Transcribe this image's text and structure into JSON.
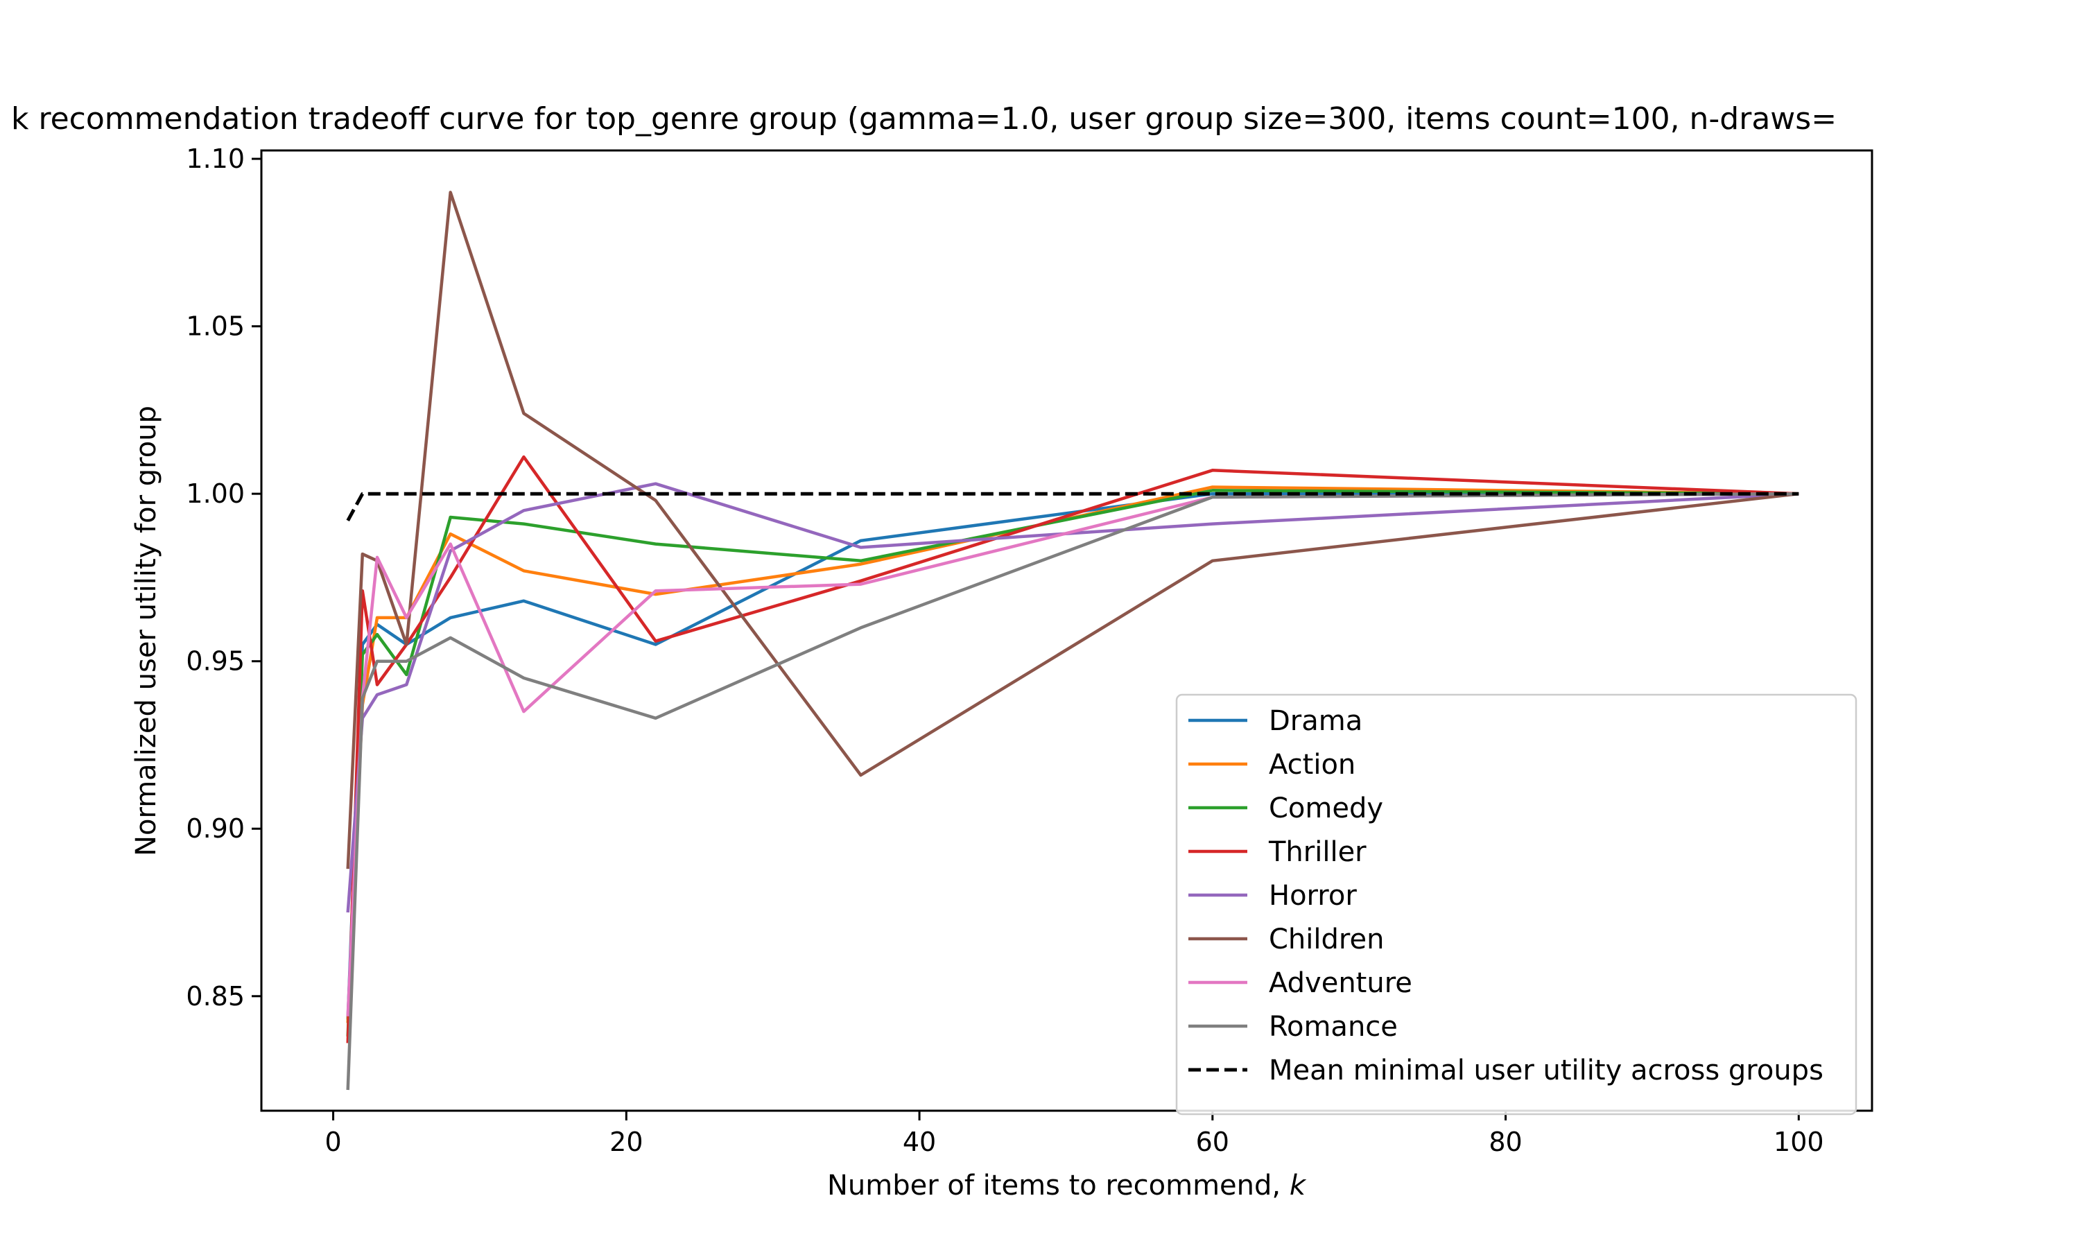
{
  "chart_data": {
    "type": "line",
    "title": "k recommendation tradeoff curve for top_genre group (gamma=1.0, user group size=300, items count=100, n-draws=",
    "xlabel": "Number of items to recommend, ",
    "xlabel_var": "k",
    "ylabel": "Normalized user utility for group",
    "xlim": [
      -4.9,
      105
    ],
    "ylim": [
      0.8158,
      1.1025
    ],
    "x_ticks": [
      0,
      20,
      40,
      60,
      80,
      100
    ],
    "x_tick_labels": [
      "0",
      "20",
      "40",
      "60",
      "80",
      "100"
    ],
    "y_ticks": [
      0.85,
      0.9,
      0.95,
      1.0,
      1.05,
      1.1
    ],
    "y_tick_labels": [
      "0.85",
      "0.90",
      "0.95",
      "1.00",
      "1.05",
      "1.10"
    ],
    "grid": false,
    "legend_position": "lower-right",
    "x": [
      1,
      2,
      3,
      5,
      8,
      13,
      22,
      36,
      60,
      100
    ],
    "series": [
      {
        "name": "Drama",
        "color": "#1f77b4",
        "dash": false,
        "values": [
          0.843,
          0.955,
          0.961,
          0.955,
          0.963,
          0.968,
          0.955,
          0.986,
          1.0,
          1.0
        ]
      },
      {
        "name": "Action",
        "color": "#ff7f0e",
        "dash": false,
        "values": [
          0.842,
          0.937,
          0.963,
          0.963,
          0.988,
          0.977,
          0.97,
          0.979,
          1.002,
          1.0
        ]
      },
      {
        "name": "Comedy",
        "color": "#2ca02c",
        "dash": false,
        "values": [
          0.838,
          0.952,
          0.958,
          0.946,
          0.993,
          0.991,
          0.985,
          0.98,
          1.001,
          1.0
        ]
      },
      {
        "name": "Thriller",
        "color": "#d62728",
        "dash": false,
        "values": [
          0.836,
          0.971,
          0.943,
          0.955,
          0.975,
          1.011,
          0.956,
          0.974,
          1.007,
          1.0
        ]
      },
      {
        "name": "Horror",
        "color": "#9467bd",
        "dash": false,
        "values": [
          0.875,
          0.933,
          0.94,
          0.943,
          0.983,
          0.995,
          1.003,
          0.984,
          0.991,
          1.0
        ]
      },
      {
        "name": "Children",
        "color": "#8c564b",
        "dash": false,
        "values": [
          0.888,
          0.982,
          0.98,
          0.955,
          1.09,
          1.024,
          0.998,
          0.916,
          0.98,
          1.0
        ]
      },
      {
        "name": "Adventure",
        "color": "#e377c2",
        "dash": false,
        "values": [
          0.844,
          0.939,
          0.981,
          0.963,
          0.985,
          0.935,
          0.971,
          0.973,
          0.999,
          1.0
        ]
      },
      {
        "name": "Romance",
        "color": "#7f7f7f",
        "dash": false,
        "values": [
          0.822,
          0.939,
          0.95,
          0.95,
          0.957,
          0.945,
          0.933,
          0.96,
          0.999,
          1.0
        ]
      },
      {
        "name": "Mean minimal user utility across groups",
        "color": "#000000",
        "dash": true,
        "values": [
          0.992,
          1.0,
          1.0,
          1.0,
          1.0,
          1.0,
          1.0,
          1.0,
          1.0,
          1.0
        ]
      }
    ]
  }
}
